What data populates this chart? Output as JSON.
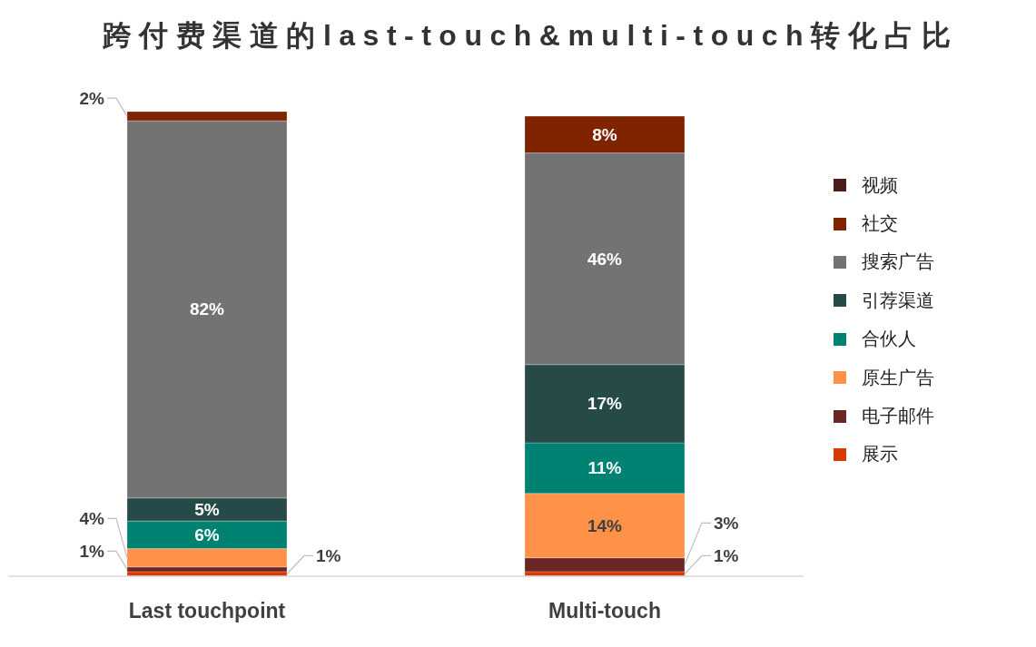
{
  "chart_data": {
    "type": "bar",
    "title": "跨付费渠道的last-touch&multi-touch转化占比",
    "categories": [
      "Last touchpoint",
      "Multi-touch"
    ],
    "stacked": true,
    "legend": "right",
    "series": [
      {
        "name": "展示",
        "color": "#d83b01",
        "values": [
          1,
          1
        ],
        "value_labels": [
          "1%",
          "1%"
        ]
      },
      {
        "name": "电子邮件",
        "color": "#6b2626",
        "values": [
          1,
          3
        ],
        "value_labels": [
          "1%",
          "3%"
        ]
      },
      {
        "name": "原生广告",
        "color": "#ff9248",
        "values": [
          4,
          14
        ],
        "value_labels": [
          "4%",
          "14%"
        ]
      },
      {
        "name": "合伙人",
        "color": "#008272",
        "values": [
          6,
          11
        ],
        "value_labels": [
          "6%",
          "11%"
        ]
      },
      {
        "name": "引荐渠道",
        "color": "#264a47",
        "values": [
          5,
          17
        ],
        "value_labels": [
          "5%",
          "17%"
        ]
      },
      {
        "name": "搜索广告",
        "color": "#737373",
        "values": [
          82,
          46
        ],
        "value_labels": [
          "82%",
          "46%"
        ]
      },
      {
        "name": "社交",
        "color": "#7f2300",
        "values": [
          2,
          8
        ],
        "value_labels": [
          "2%",
          "8%"
        ]
      },
      {
        "name": "视频",
        "color": "#4b1d1b",
        "values": [
          null,
          null
        ],
        "value_labels": [
          null,
          null
        ]
      }
    ]
  }
}
